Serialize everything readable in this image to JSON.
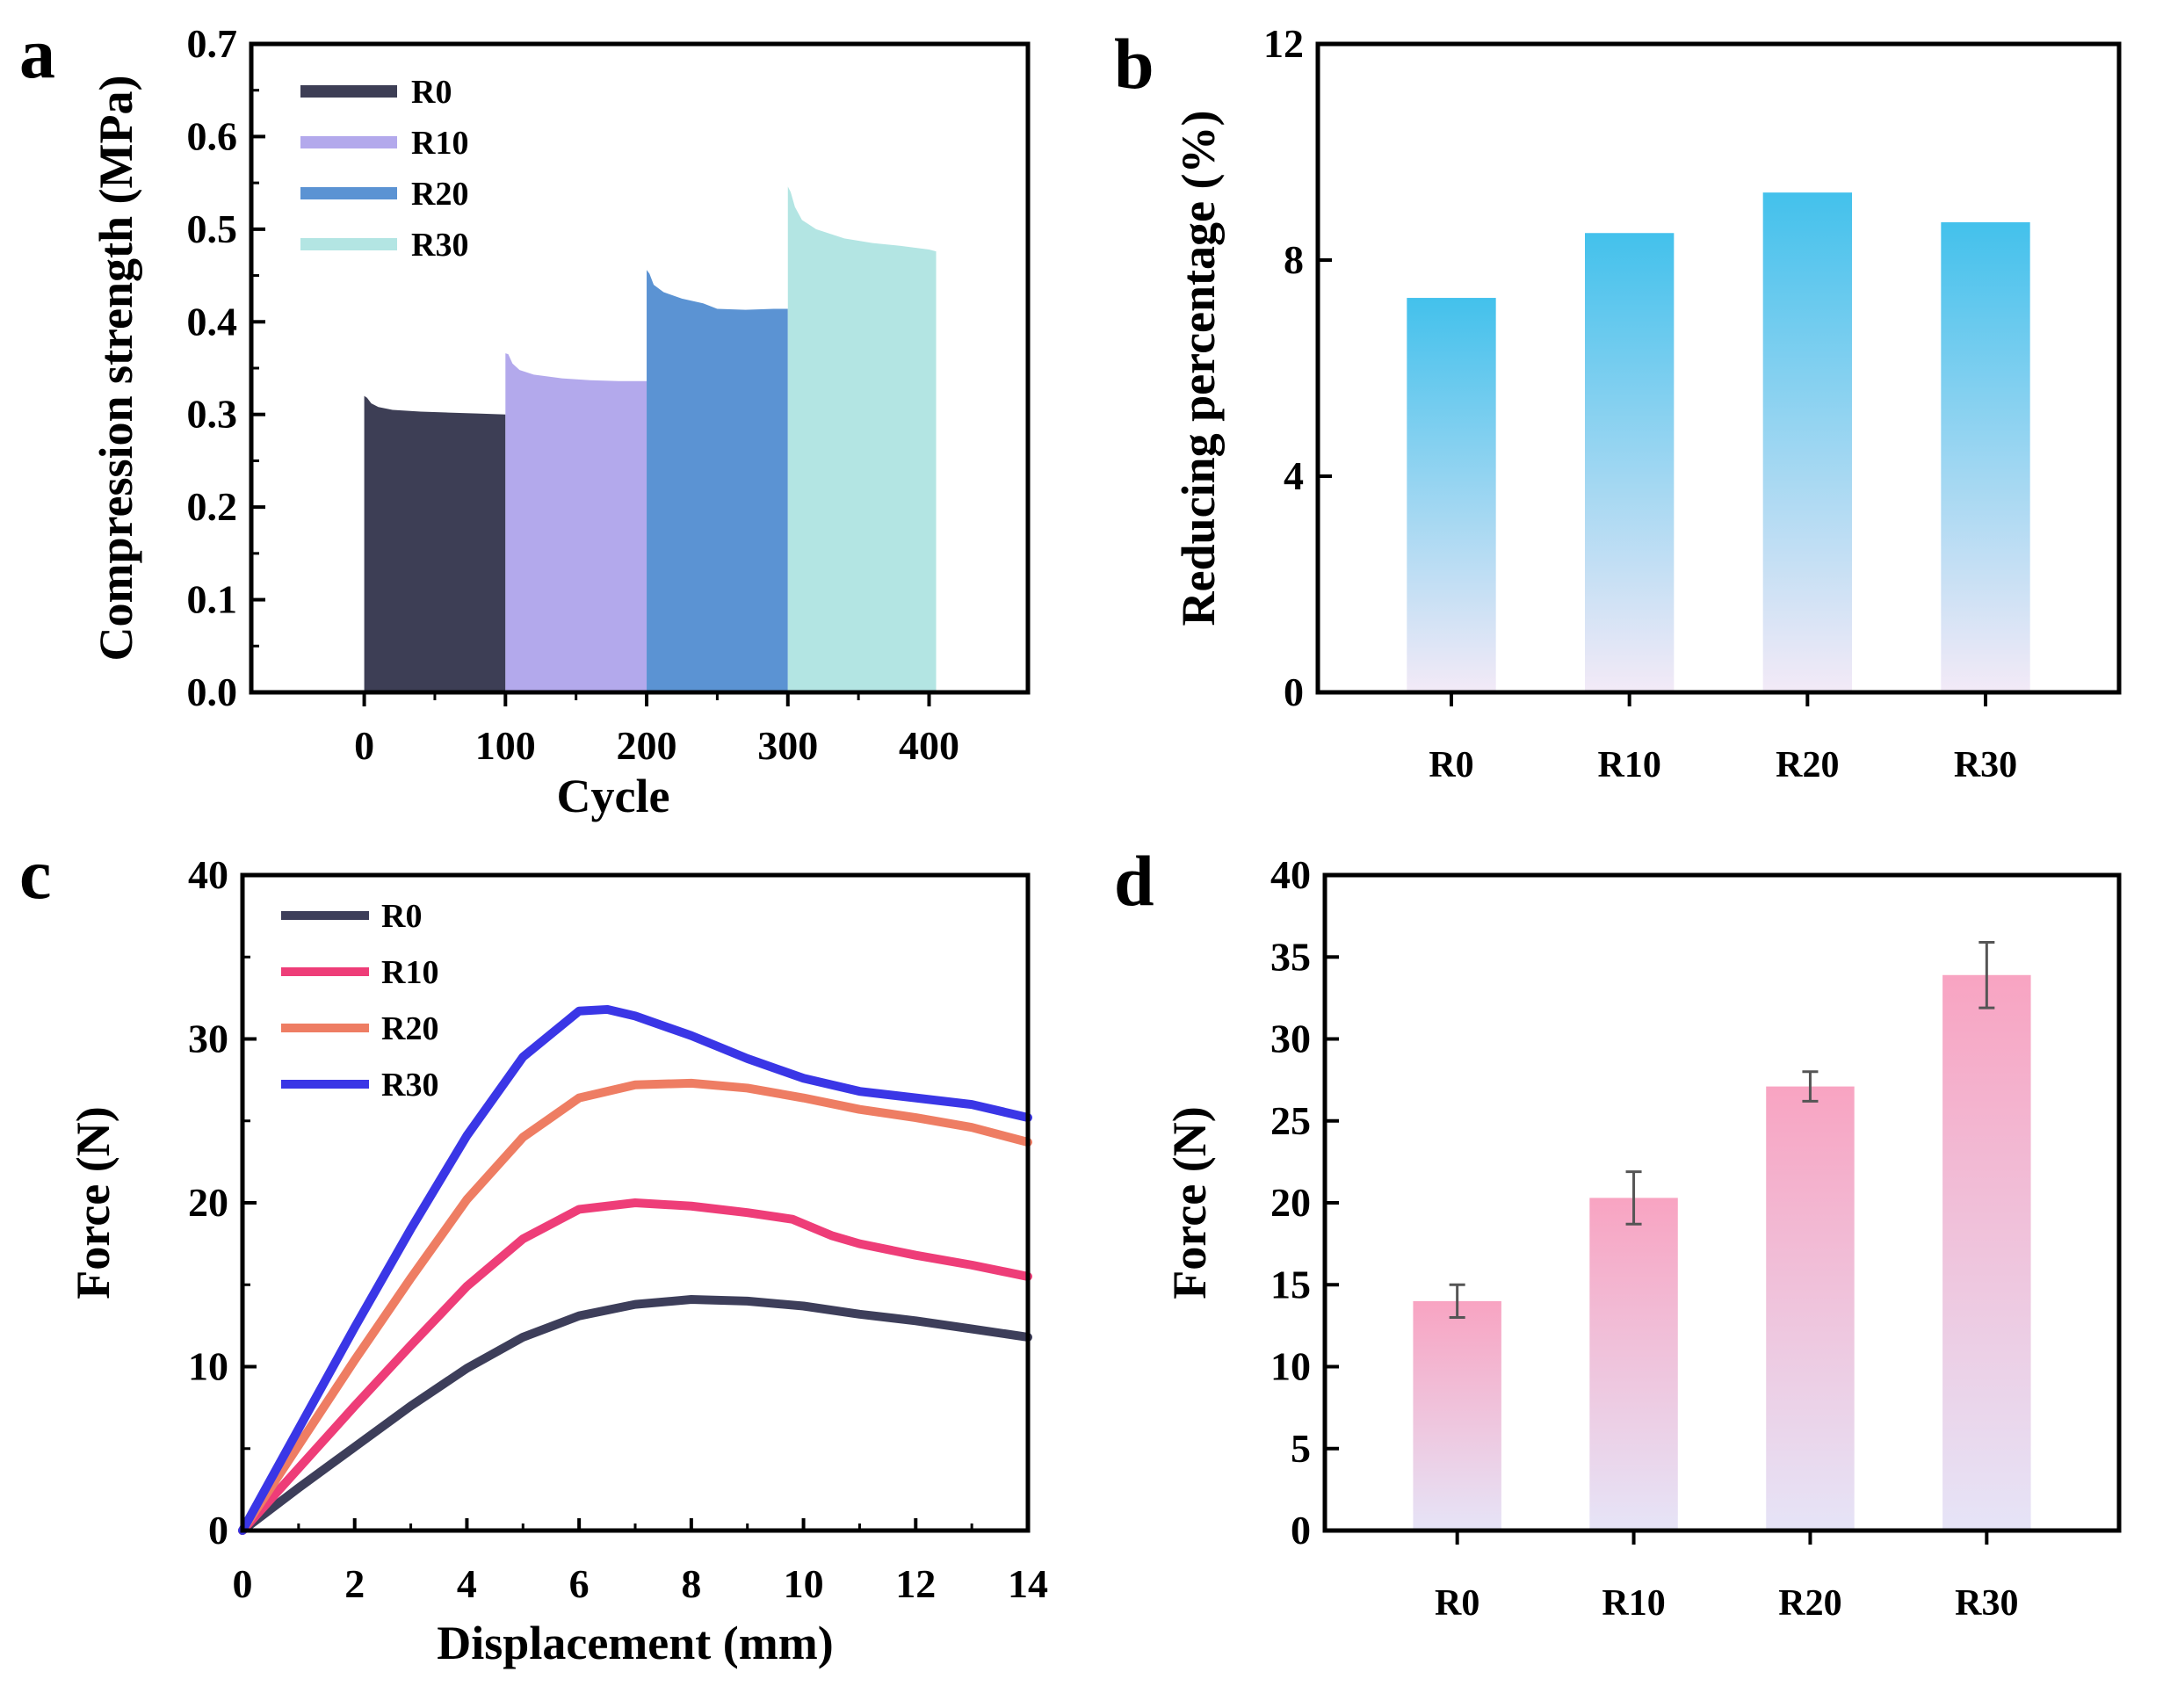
{
  "chart_data": [
    {
      "panel": "a",
      "type": "area",
      "xlabel": "Cycle",
      "ylabel": "Compression strength (MPa)",
      "xlim": [
        -80,
        470
      ],
      "ylim": [
        0,
        0.7
      ],
      "xticks": [
        0,
        100,
        200,
        300,
        400
      ],
      "yticks": [
        0.0,
        0.1,
        0.2,
        0.3,
        0.4,
        0.5,
        0.6,
        0.7
      ],
      "ytick_labels": [
        "0.0",
        "0.1",
        "0.2",
        "0.3",
        "0.4",
        "0.5",
        "0.6",
        "0.7"
      ],
      "legend": "top-left",
      "series": [
        {
          "name": "R0",
          "color": "#3d3e55",
          "x": [
            0,
            2,
            5,
            10,
            20,
            40,
            60,
            80,
            100
          ],
          "y": [
            0.32,
            0.318,
            0.312,
            0.308,
            0.305,
            0.303,
            0.302,
            0.301,
            0.3
          ]
        },
        {
          "name": "R10",
          "color": "#b3a9ec",
          "x": [
            100,
            102,
            105,
            110,
            120,
            140,
            160,
            180,
            200
          ],
          "y": [
            0.366,
            0.365,
            0.355,
            0.348,
            0.343,
            0.339,
            0.337,
            0.336,
            0.336
          ]
        },
        {
          "name": "R20",
          "color": "#5b93d3",
          "x": [
            200,
            202,
            205,
            212,
            225,
            240,
            250,
            270,
            290,
            300
          ],
          "y": [
            0.456,
            0.452,
            0.44,
            0.432,
            0.425,
            0.42,
            0.414,
            0.413,
            0.414,
            0.414
          ]
        },
        {
          "name": "R30",
          "color": "#b3e5e3",
          "x": [
            300,
            302,
            305,
            310,
            320,
            340,
            360,
            380,
            400,
            405
          ],
          "y": [
            0.546,
            0.54,
            0.524,
            0.51,
            0.5,
            0.49,
            0.485,
            0.482,
            0.478,
            0.476
          ]
        }
      ]
    },
    {
      "panel": "b",
      "type": "bar",
      "ylabel": "Reducing percentage (%)",
      "categories": [
        "R0",
        "R10",
        "R20",
        "R30"
      ],
      "values": [
        7.3,
        8.5,
        9.25,
        8.7
      ],
      "ylim": [
        0,
        12
      ],
      "yticks": [
        0,
        4,
        8,
        12
      ],
      "bar_gradient": {
        "top": "#43c1ec",
        "bottom": "#f3eaf7"
      }
    },
    {
      "panel": "c",
      "type": "line",
      "xlabel": "Displacement (mm)",
      "ylabel": "Force (N)",
      "xlim": [
        0,
        14
      ],
      "ylim": [
        0,
        40
      ],
      "xticks": [
        0,
        2,
        4,
        6,
        8,
        10,
        12,
        14
      ],
      "yticks": [
        0,
        10,
        20,
        30,
        40
      ],
      "legend": "top-left",
      "series": [
        {
          "name": "R0",
          "color": "#3d3e5a",
          "x": [
            0,
            1,
            2,
            3,
            4,
            5,
            6,
            7,
            8,
            9,
            10,
            11,
            12,
            13,
            14
          ],
          "y": [
            0,
            2.6,
            5.1,
            7.6,
            9.9,
            11.8,
            13.1,
            13.8,
            14.1,
            14.0,
            13.7,
            13.2,
            12.8,
            12.3,
            11.8
          ]
        },
        {
          "name": "R10",
          "color": "#ee3d78",
          "x": [
            0,
            1,
            2,
            3,
            4,
            5,
            6,
            7,
            8,
            9,
            9.8,
            10.5,
            11,
            12,
            13,
            14
          ],
          "y": [
            0,
            3.8,
            7.6,
            11.3,
            14.9,
            17.8,
            19.6,
            20.0,
            19.8,
            19.4,
            19.0,
            18.0,
            17.5,
            16.8,
            16.2,
            15.5
          ]
        },
        {
          "name": "R20",
          "color": "#ee7d63",
          "x": [
            0,
            1,
            2,
            3,
            4,
            5,
            6,
            7,
            8,
            9,
            10,
            11,
            12,
            13,
            14
          ],
          "y": [
            0,
            5.2,
            10.4,
            15.4,
            20.2,
            24.0,
            26.4,
            27.2,
            27.3,
            27.0,
            26.4,
            25.7,
            25.2,
            24.6,
            23.7
          ]
        },
        {
          "name": "R30",
          "color": "#3a36e6",
          "x": [
            0,
            1,
            2,
            3,
            4,
            5,
            6,
            6.5,
            7,
            8,
            9,
            10,
            11,
            12,
            13,
            14
          ],
          "y": [
            0,
            6.2,
            12.4,
            18.4,
            24.1,
            28.9,
            31.7,
            31.8,
            31.4,
            30.2,
            28.8,
            27.6,
            26.8,
            26.4,
            26.0,
            25.2
          ]
        }
      ]
    },
    {
      "panel": "d",
      "type": "bar",
      "ylabel": "Force (N)",
      "categories": [
        "R0",
        "R10",
        "R20",
        "R30"
      ],
      "values": [
        14.0,
        20.3,
        27.1,
        33.9
      ],
      "errors": [
        1.0,
        1.6,
        0.9,
        2.0
      ],
      "ylim": [
        0,
        40
      ],
      "yticks": [
        0,
        5,
        10,
        15,
        20,
        25,
        30,
        35,
        40
      ],
      "bar_gradient": {
        "top": "#f8a4c2",
        "bottom": "#e6e4f7"
      }
    }
  ],
  "panel_labels": [
    "a",
    "b",
    "c",
    "d"
  ]
}
